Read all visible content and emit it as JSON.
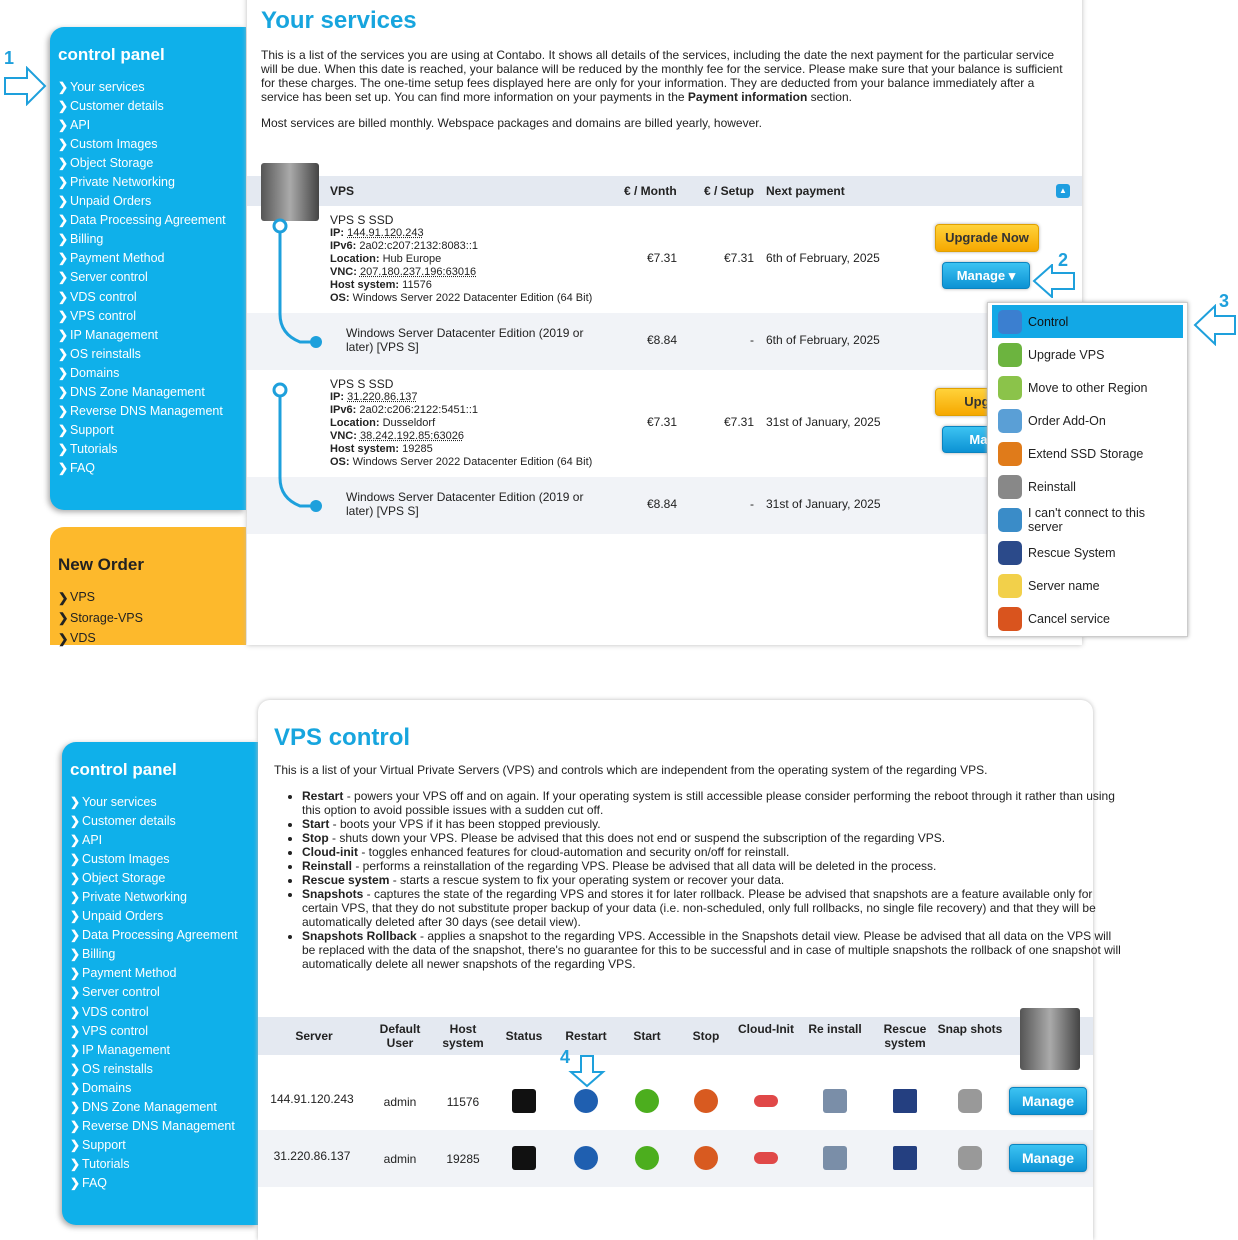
{
  "sidebar": {
    "title": "control panel",
    "items": [
      "Your services",
      "Customer details",
      "API",
      "Custom Images",
      "Object Storage",
      "Private Networking",
      "Unpaid Orders",
      "Data Processing Agreement",
      "Billing",
      "Payment Method",
      "Server control",
      "VDS control",
      "VPS control",
      "IP Management",
      "OS reinstalls",
      "Domains",
      "DNS Zone Management",
      "Reverse DNS Management",
      "Support",
      "Tutorials",
      "FAQ"
    ]
  },
  "new_order": {
    "title": "New Order",
    "items": [
      "VPS",
      "Storage-VPS",
      "VDS"
    ]
  },
  "services": {
    "title": "Your services",
    "intro_a": "This is a list of the services you are using at Contabo. It shows all details of the services, including the date the next payment for the particular service will be due. When this date is reached, your balance will be reduced by the monthly fee for the service. Please make sure that your balance is sufficient for these charges. The one-time setup fees displayed here are only for your information. They are deducted from your balance immediately after a service has been set up. You can find more information on your payments in the ",
    "intro_bold": "Payment information",
    "intro_b": " section.",
    "note": "Most services are billed monthly. Webspace packages and domains are billed yearly, however.",
    "headers": {
      "vps": "VPS",
      "month": "€ / Month",
      "setup": "€ / Setup",
      "next": "Next payment"
    },
    "rows": [
      {
        "name": "VPS S SSD",
        "ip_label": "IP:",
        "ip": "144.91.120.243",
        "ipv6_label": "IPv6:",
        "ipv6": "2a02:c207:2132:8083::1",
        "loc_label": "Location:",
        "loc": "Hub Europe",
        "vnc_label": "VNC:",
        "vnc": "207.180.237.196:63016",
        "host_label": "Host system:",
        "host": "11576",
        "os_label": "OS:",
        "os": "Windows Server 2022 Datacenter Edition (64 Bit)",
        "month": "€7.31",
        "setup": "€7.31",
        "next": "6th of February, 2025",
        "addon": "Windows Server Datacenter Edition (2019 or later) [VPS S]",
        "addon_month": "€8.84",
        "addon_setup": "-",
        "addon_next": "6th of February, 2025"
      },
      {
        "name": "VPS S SSD",
        "ip_label": "IP:",
        "ip": "31.220.86.137",
        "ipv6_label": "IPv6:",
        "ipv6": "2a02:c206:2122:5451::1",
        "loc_label": "Location:",
        "loc": "Dusseldorf",
        "vnc_label": "VNC:",
        "vnc": "38.242.192.85:63026",
        "host_label": "Host system:",
        "host": "19285",
        "os_label": "OS:",
        "os": "Windows Server 2022 Datacenter Edition (64 Bit)",
        "month": "€7.31",
        "setup": "€7.31",
        "next": "31st of January, 2025",
        "addon": "Windows Server Datacenter Edition (2019 or later) [VPS S]",
        "addon_month": "€8.84",
        "addon_setup": "-",
        "addon_next": "31st of January, 2025"
      }
    ],
    "upgrade_label": "Upgrade Now",
    "upgrade_short": "Upgrad",
    "manage_label": "Manage ▾",
    "manage_short": "Mana"
  },
  "manage_menu": [
    {
      "label": "Control",
      "icon": "gear-icon",
      "color": "#3b7fd0"
    },
    {
      "label": "Upgrade VPS",
      "icon": "upgrade-gear-icon",
      "color": "#6cb43f"
    },
    {
      "label": "Move to other Region",
      "icon": "move-region-icon",
      "color": "#8bc34a"
    },
    {
      "label": "Order Add-On",
      "icon": "add-on-icon",
      "color": "#5a9fd6"
    },
    {
      "label": "Extend SSD Storage",
      "icon": "disk-icon",
      "color": "#e07b1a"
    },
    {
      "label": "Reinstall",
      "icon": "reinstall-icon",
      "color": "#888888"
    },
    {
      "label": "I can't connect to this server",
      "icon": "connect-icon",
      "color": "#3a8cc8"
    },
    {
      "label": "Rescue System",
      "icon": "floppy-icon",
      "color": "#2b4a8a"
    },
    {
      "label": "Server name",
      "icon": "label-icon",
      "color": "#f2d04a"
    },
    {
      "label": "Cancel service",
      "icon": "cancel-icon",
      "color": "#d9541e"
    }
  ],
  "annotations": [
    "1",
    "2",
    "3",
    "4"
  ],
  "vps_control": {
    "title": "VPS control",
    "intro": "This is a list of your Virtual Private Servers (VPS) and controls which are independent from the operating system of the regarding VPS.",
    "bullets": [
      {
        "term": "Restart",
        "text": " - powers your VPS off and on again. If your operating system is still accessible please consider performing the reboot through it rather than using this option to avoid possible issues with a sudden cut off."
      },
      {
        "term": "Start",
        "text": " - boots your VPS if it has been stopped previously."
      },
      {
        "term": "Stop",
        "text": " - shuts down your VPS. Please be advised that this does not end or suspend the subscription of the regarding VPS."
      },
      {
        "term": "Cloud-init",
        "text": " - toggles enhanced features for cloud-automation and security on/off for reinstall."
      },
      {
        "term": "Reinstall",
        "text": " - performs a reinstallation of the regarding VPS. Please be advised that all data will be deleted in the process."
      },
      {
        "term": "Rescue system",
        "text": " - starts a rescue system to fix your operating system or recover your data."
      },
      {
        "term": "Snapshots",
        "text": " - captures the state of the regarding VPS and stores it for later rollback. Please be advised that snapshots are a feature available only for certain VPS, that they do not substitute proper backup of your data (i.e. non-scheduled, only full rollbacks, no single file recovery) and that they will be automatically deleted after 30 days (see detail view)."
      },
      {
        "term": "Snapshots Rollback",
        "text": " - applies a snapshot to the regarding VPS. Accessible in the Snapshots detail view. Please be advised that all data on the VPS will be replaced with the data of the snapshot, there's no guarantee for this to be successful and in case of multiple snapshots the rollback of one snapshot will automatically delete all newer snapshots of the regarding VPS."
      }
    ],
    "headers": [
      "Server",
      "Default User",
      "Host system",
      "Status",
      "Restart",
      "Start",
      "Stop",
      "Cloud-Init",
      "Re install",
      "Rescue system",
      "Snap shots"
    ],
    "rows": [
      {
        "server": "144.91.120.243",
        "user": "admin",
        "host": "11576"
      },
      {
        "server": "31.220.86.137",
        "user": "admin",
        "host": "19285"
      }
    ],
    "manage_label": "Manage"
  }
}
